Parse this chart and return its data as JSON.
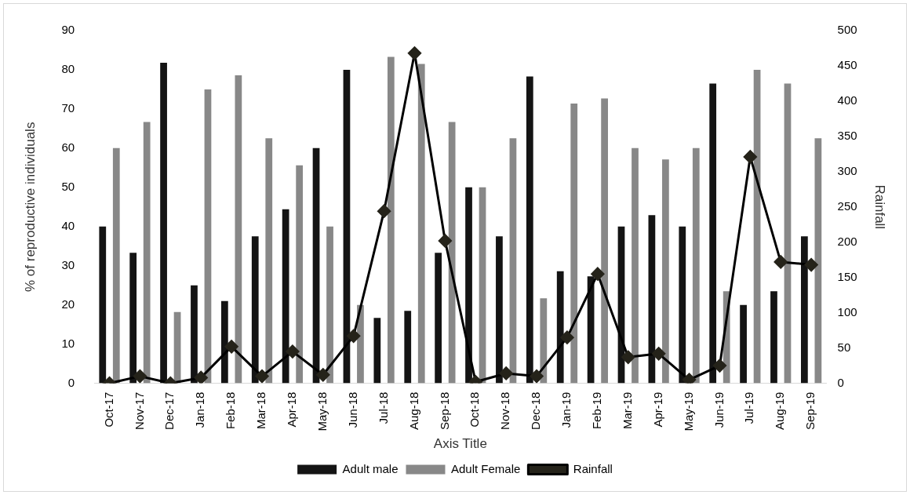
{
  "chart_data": {
    "type": "bar",
    "xlabel": "Axis Title",
    "ylabel": "% of reproductive individuals",
    "y2label": "Rainfall",
    "categories": [
      "Oct-17",
      "Nov-17",
      "Dec-17",
      "Jan-18",
      "Feb-18",
      "Mar-18",
      "Apr-18",
      "May-18",
      "Jun-18",
      "Jul-18",
      "Aug-18",
      "Sep-18",
      "Oct-18",
      "Nov-18",
      "Dec-18",
      "Jan-19",
      "Feb-19",
      "Mar-19",
      "Apr-19",
      "May-19",
      "Jun-19",
      "Jul-19",
      "Aug-19",
      "Sep-19"
    ],
    "series": [
      {
        "name": "Adult male",
        "color": "#141414",
        "values": [
          40,
          33.3,
          81.8,
          25,
          21,
          37.5,
          44.4,
          60,
          80,
          16.7,
          18.5,
          33.3,
          50,
          37.5,
          78.3,
          28.6,
          27.3,
          40,
          42.9,
          40,
          76.5,
          20,
          23.5,
          37.5
        ]
      },
      {
        "name": "Adult Female",
        "color": "#888888",
        "values": [
          60,
          66.7,
          18.2,
          75,
          78.6,
          62.5,
          55.6,
          40,
          20,
          83.3,
          81.5,
          66.7,
          50,
          62.5,
          21.7,
          71.4,
          72.7,
          60,
          57.1,
          60,
          23.5,
          80,
          76.5,
          62.5
        ]
      },
      {
        "name": "Rainfall",
        "type": "line",
        "axis": "y2",
        "color": "#000000",
        "values": [
          0,
          10,
          0,
          8,
          52,
          10,
          45,
          12,
          67,
          244,
          468,
          202,
          2,
          14,
          10,
          65,
          155,
          37,
          42,
          5,
          25,
          321,
          172,
          168
        ]
      }
    ],
    "ylim": [
      0,
      90
    ],
    "yticks": [
      0,
      10,
      20,
      30,
      40,
      50,
      60,
      70,
      80,
      90
    ],
    "y2lim": [
      0,
      500
    ],
    "y2ticks": [
      0,
      50,
      100,
      150,
      200,
      250,
      300,
      350,
      400,
      450,
      500
    ],
    "grid": false,
    "legend": "bottom",
    "marker": "diamond",
    "line_style": "solid"
  }
}
